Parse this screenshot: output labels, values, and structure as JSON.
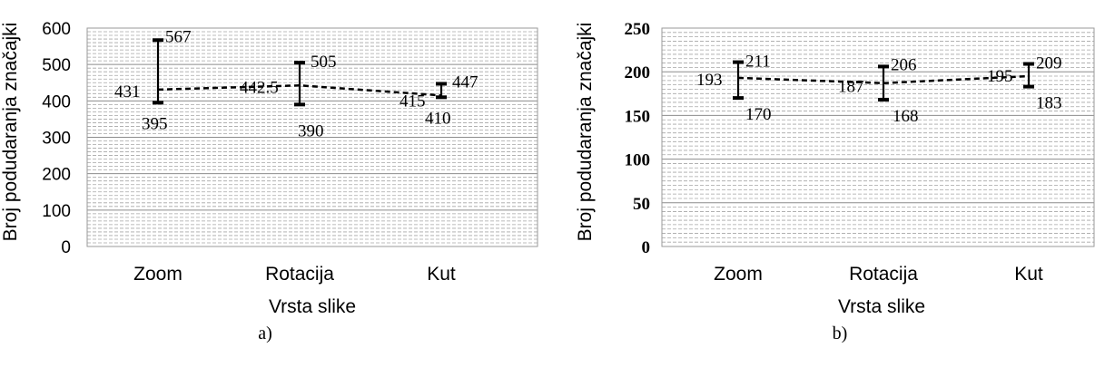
{
  "chart_data": [
    {
      "type": "line",
      "panel_label": "a)",
      "ylabel": "Broj podudaranja značajki",
      "xlabel": "Vrsta slike",
      "categories": [
        "Zoom",
        "Rotacija",
        "Kut"
      ],
      "ylim": [
        0,
        600
      ],
      "yticks": [
        0,
        100,
        200,
        300,
        400,
        500,
        600
      ],
      "grid": true,
      "line_style": "dashed",
      "series": [
        {
          "values": [
            431,
            442.5,
            415
          ],
          "value_labels": [
            "431",
            "442.5",
            "415"
          ],
          "min": [
            395,
            390,
            410
          ],
          "min_labels": [
            "395",
            "390",
            "410"
          ],
          "max": [
            567,
            505,
            447
          ],
          "max_labels": [
            "567",
            "505",
            "447"
          ]
        }
      ]
    },
    {
      "type": "line",
      "panel_label": "b)",
      "ylabel": "Broj podudaranja značajki",
      "xlabel": "Vrsta slike",
      "categories": [
        "Zoom",
        "Rotacija",
        "Kut"
      ],
      "ylim": [
        0,
        250
      ],
      "yticks": [
        0,
        50,
        100,
        150,
        200,
        250
      ],
      "grid": true,
      "line_style": "dashed",
      "series": [
        {
          "values": [
            193,
            187,
            195
          ],
          "value_labels": [
            "193",
            "187",
            "195"
          ],
          "min": [
            170,
            168,
            183
          ],
          "min_labels": [
            "170",
            "168",
            "183"
          ],
          "max": [
            211,
            206,
            209
          ],
          "max_labels": [
            "211",
            "206",
            "209"
          ]
        }
      ]
    }
  ]
}
